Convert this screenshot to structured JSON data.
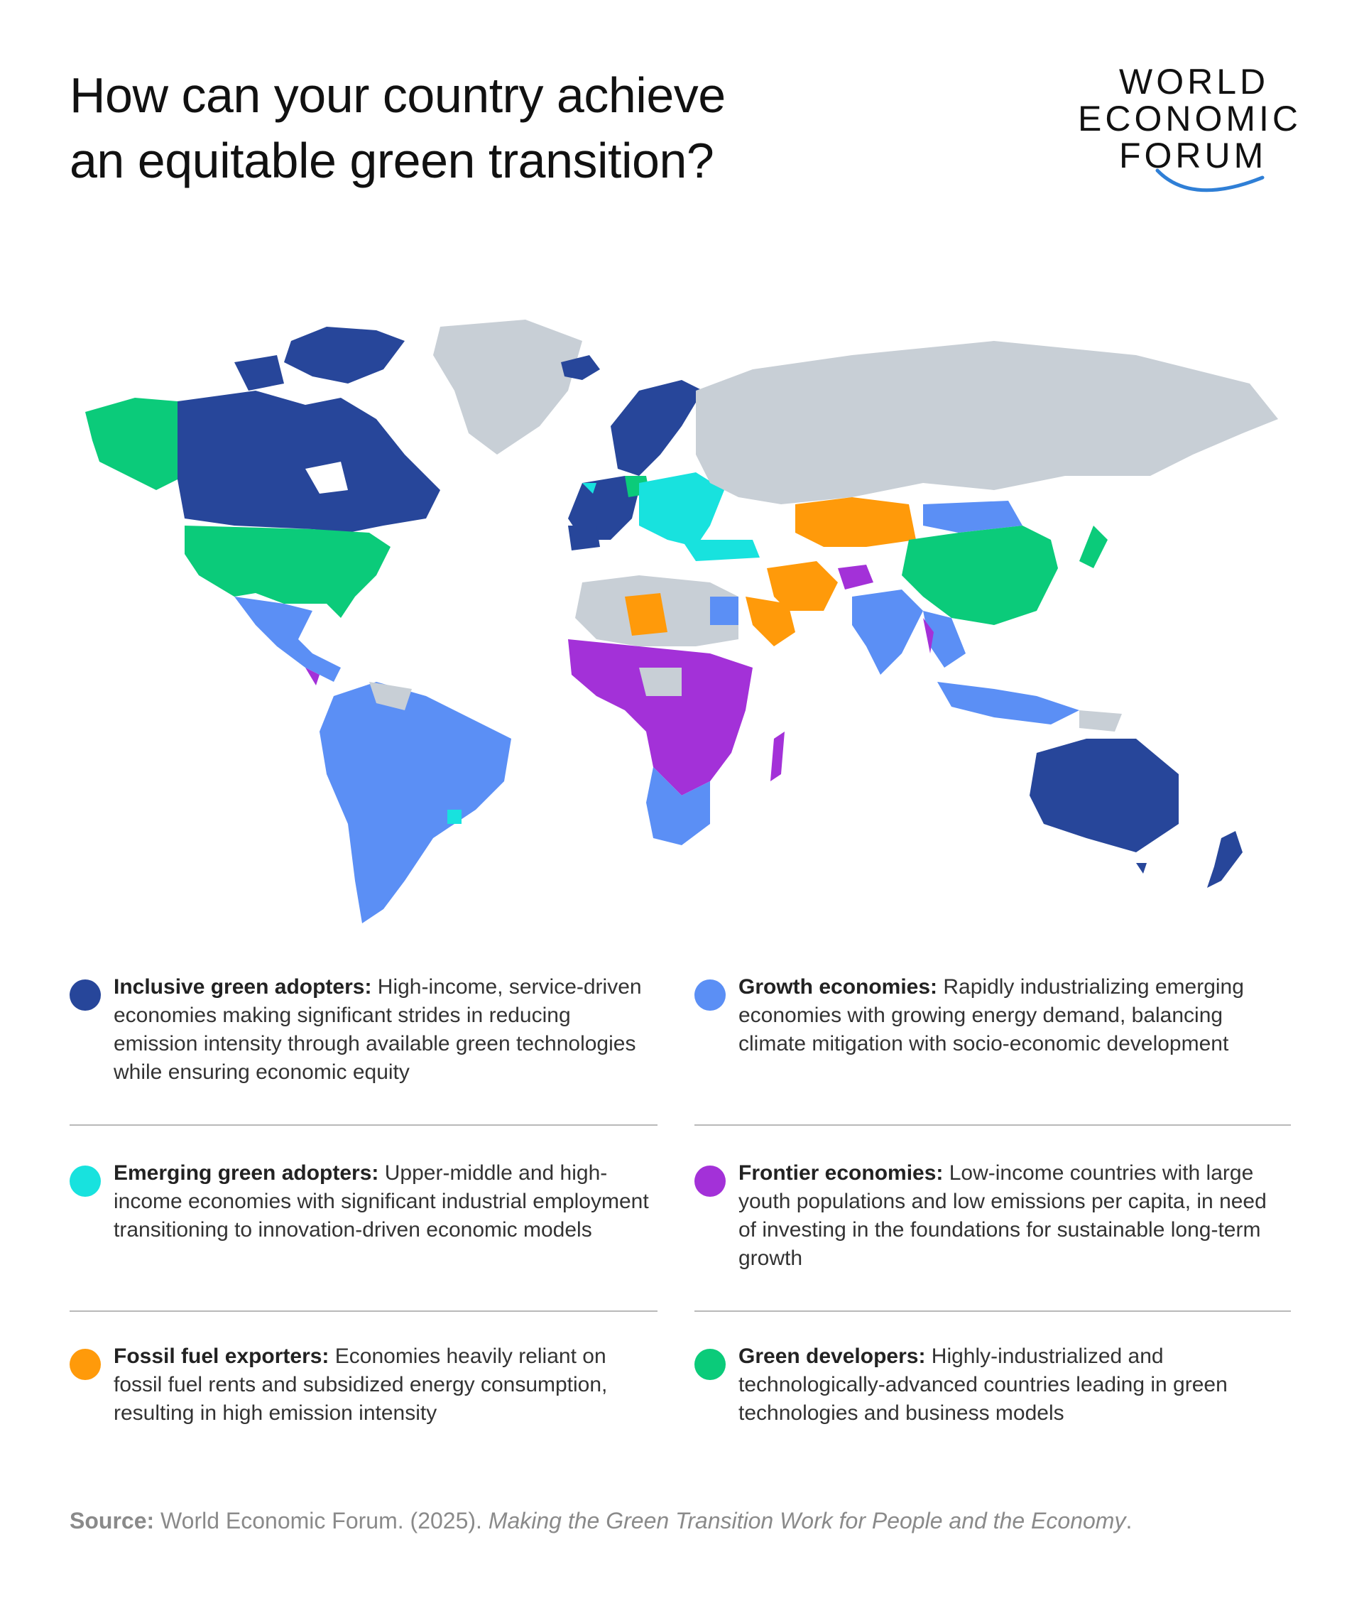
{
  "title": {
    "line1": "How can your country achieve",
    "line2": "an equitable green transition?"
  },
  "logo": {
    "line1": "WORLD",
    "line2": "ECONOMIC",
    "line3": "FORUM",
    "arc_color": "#2f7fd6"
  },
  "colors": {
    "inclusive_green_adopters": "#27469a",
    "growth_economies": "#5b8ff5",
    "emerging_green_adopters": "#18e2de",
    "frontier_economies": "#a331d8",
    "fossil_fuel_exporters": "#ff9a0a",
    "green_developers": "#0bcb7a",
    "no_data": "#c8cfd6"
  },
  "legend": [
    {
      "bold": "Inclusive green adopters:",
      "text": " High-income, service-driven economies making significant strides in reducing emission intensity through available green technologies while ensuring economic equity",
      "color": "#27469a"
    },
    {
      "bold": "Growth economies:",
      "text": " Rapidly industrializing emerging economies with growing energy demand, balancing climate mitigation with socio-economic development",
      "color": "#5b8ff5"
    },
    {
      "bold": "Emerging green adopters:",
      "text": " Upper-middle and high-income economies with significant industrial employment transitioning to innovation-driven economic models",
      "color": "#18e2de"
    },
    {
      "bold": "Frontier economies:",
      "text": " Low-income countries with large youth populations and low emissions per capita, in need of investing in the foundations for sustainable long-term growth",
      "color": "#a331d8"
    },
    {
      "bold": "Fossil fuel exporters:",
      "text": " Economies heavily reliant on fossil fuel rents and subsidized energy consumption, resulting in high emission intensity",
      "color": "#ff9a0a"
    },
    {
      "bold": "Green developers:",
      "text": " Highly-industrialized and technologically-advanced countries leading in green technologies and business models",
      "color": "#0bcb7a"
    }
  ],
  "source": {
    "label": "Source:",
    "text": " World Economic Forum. (2025). ",
    "publication": "Making the Green Transition Work for People and the Economy",
    "end": "."
  }
}
